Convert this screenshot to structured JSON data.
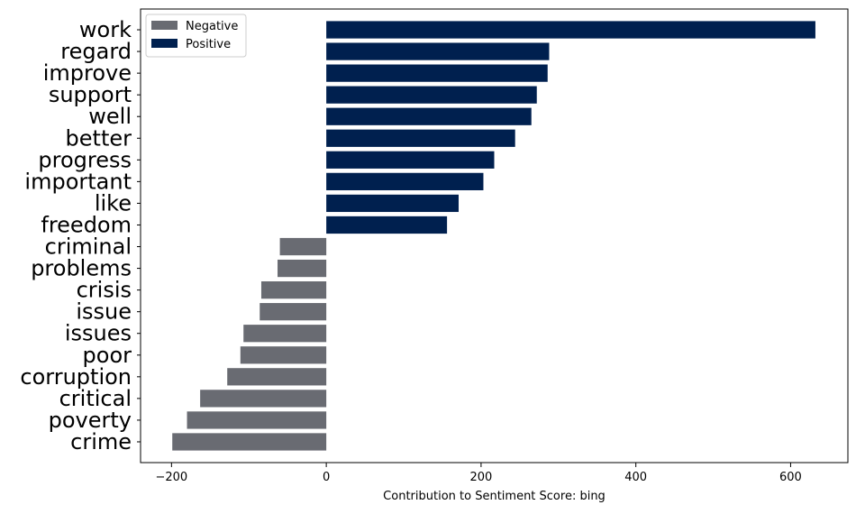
{
  "chart_data": {
    "type": "bar",
    "orientation": "horizontal",
    "xlabel": "Contribution to Sentiment Score: bing",
    "xlim": [
      -240,
      674
    ],
    "xticks": [
      -200,
      0,
      200,
      400,
      600
    ],
    "grid": false,
    "legend_position": "top-left",
    "series": [
      {
        "name": "Negative",
        "color": "#696b72"
      },
      {
        "name": "Positive",
        "color": "#00204f"
      }
    ],
    "categories": [
      "work",
      "regard",
      "improve",
      "support",
      "well",
      "better",
      "progress",
      "important",
      "like",
      "freedom",
      "criminal",
      "problems",
      "crisis",
      "issue",
      "issues",
      "poor",
      "corruption",
      "critical",
      "poverty",
      "crime"
    ],
    "values": [
      632,
      288,
      286,
      272,
      265,
      244,
      217,
      203,
      171,
      156,
      -60,
      -63,
      -84,
      -86,
      -107,
      -111,
      -128,
      -163,
      -180,
      -199
    ],
    "sentiment": [
      "Positive",
      "Positive",
      "Positive",
      "Positive",
      "Positive",
      "Positive",
      "Positive",
      "Positive",
      "Positive",
      "Positive",
      "Negative",
      "Negative",
      "Negative",
      "Negative",
      "Negative",
      "Negative",
      "Negative",
      "Negative",
      "Negative",
      "Negative"
    ]
  }
}
